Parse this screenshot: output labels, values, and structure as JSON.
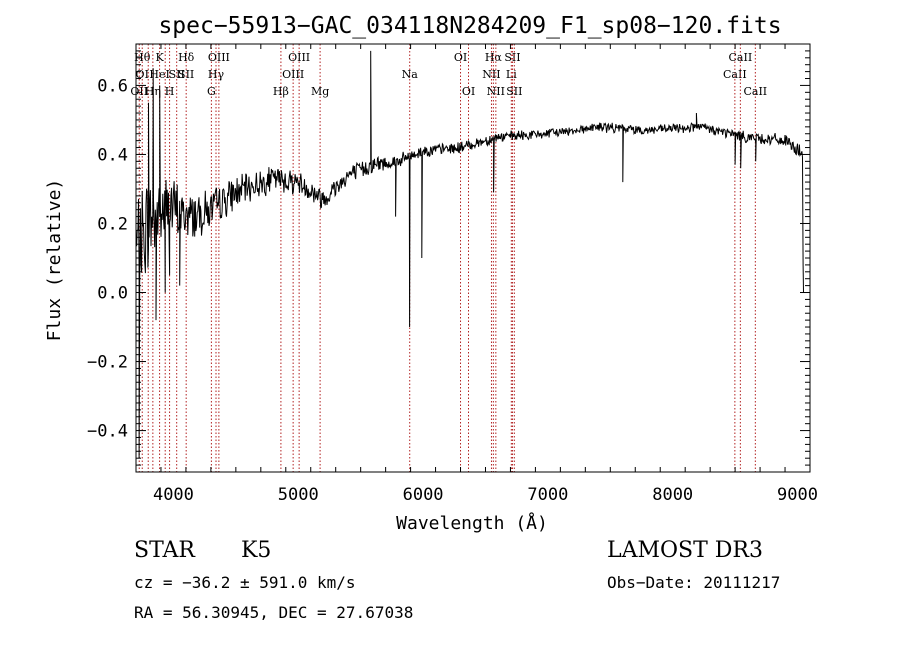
{
  "chart_data": {
    "type": "line",
    "title": "spec−55913−GAC_034118N284209_F1_sp08−120.fits",
    "xlabel": "Wavelength (Å)",
    "ylabel": "Flux (relative)",
    "xlim": [
      3700,
      9100
    ],
    "ylim": [
      -0.52,
      0.72
    ],
    "xticks": [
      4000,
      5000,
      6000,
      7000,
      8000,
      9000
    ],
    "xtick_labels": [
      "4000",
      "5000",
      "6000",
      "7000",
      "8000",
      "9000"
    ],
    "yticks": [
      -0.4,
      -0.2,
      0.0,
      0.2,
      0.4,
      0.6
    ],
    "ytick_labels": [
      "−0.4",
      "−0.2",
      "0.0",
      "0.2",
      "0.4",
      "0.6"
    ],
    "continuum": [
      [
        3700,
        0.12
      ],
      [
        3800,
        0.2
      ],
      [
        3950,
        0.25
      ],
      [
        4100,
        0.22
      ],
      [
        4300,
        0.24
      ],
      [
        4500,
        0.29
      ],
      [
        4800,
        0.33
      ],
      [
        5000,
        0.32
      ],
      [
        5200,
        0.27
      ],
      [
        5400,
        0.34
      ],
      [
        5600,
        0.37
      ],
      [
        5800,
        0.38
      ],
      [
        6000,
        0.41
      ],
      [
        6300,
        0.42
      ],
      [
        6600,
        0.45
      ],
      [
        7000,
        0.46
      ],
      [
        7400,
        0.48
      ],
      [
        7800,
        0.47
      ],
      [
        8200,
        0.48
      ],
      [
        8600,
        0.45
      ],
      [
        8900,
        0.44
      ],
      [
        9050,
        0.4
      ]
    ],
    "noise_profile": [
      [
        3700,
        0.14
      ],
      [
        4000,
        0.08
      ],
      [
        4300,
        0.05
      ],
      [
        4600,
        0.035
      ],
      [
        5000,
        0.03
      ],
      [
        6000,
        0.015
      ],
      [
        7000,
        0.012
      ],
      [
        8000,
        0.012
      ],
      [
        9000,
        0.016
      ]
    ],
    "features": [
      {
        "x": 3725,
        "y": -0.48
      },
      {
        "x": 3800,
        "y": 0.55
      },
      {
        "x": 3838,
        "y": 0.65
      },
      {
        "x": 3860,
        "y": -0.08
      },
      {
        "x": 3890,
        "y": 0.6
      },
      {
        "x": 3934,
        "y": 0.0
      },
      {
        "x": 3969,
        "y": 0.05
      },
      {
        "x": 4050,
        "y": 0.02
      },
      {
        "x": 5580,
        "y": 0.7
      },
      {
        "x": 5780,
        "y": 0.22
      },
      {
        "x": 5892,
        "y": -0.1
      },
      {
        "x": 5990,
        "y": 0.1
      },
      {
        "x": 6565,
        "y": 0.29
      },
      {
        "x": 7600,
        "y": 0.32
      },
      {
        "x": 8190,
        "y": 0.52
      },
      {
        "x": 8500,
        "y": 0.37
      },
      {
        "x": 8545,
        "y": 0.36
      },
      {
        "x": 8665,
        "y": 0.38
      },
      {
        "x": 9045,
        "y": 0.08
      },
      {
        "x": 9048,
        "y": 0.0
      }
    ],
    "line_markers": [
      {
        "wavelength": 3726,
        "labels": [
          {
            "text": "OII",
            "row": 2
          }
        ]
      },
      {
        "wavelength": 3750,
        "labels": [
          {
            "text": "Hθ",
            "row": 0
          },
          {
            "text": "OI",
            "row": 1
          }
        ]
      },
      {
        "wavelength": 3798,
        "labels": []
      },
      {
        "wavelength": 3835,
        "labels": [
          {
            "text": "Hη",
            "row": 2
          }
        ]
      },
      {
        "wavelength": 3889,
        "labels": [
          {
            "text": "K",
            "row": 0
          },
          {
            "text": "HeI",
            "row": 1
          }
        ]
      },
      {
        "wavelength": 3934,
        "labels": []
      },
      {
        "wavelength": 3969,
        "labels": [
          {
            "text": "H",
            "row": 2
          }
        ]
      },
      {
        "wavelength": 4026,
        "labels": [
          {
            "text": "SII",
            "row": 1
          }
        ]
      },
      {
        "wavelength": 4102,
        "labels": [
          {
            "text": "Hδ",
            "row": 0
          },
          {
            "text": "SII",
            "row": 1
          }
        ]
      },
      {
        "wavelength": 4304,
        "labels": [
          {
            "text": "G",
            "row": 2
          }
        ]
      },
      {
        "wavelength": 4341,
        "labels": [
          {
            "text": "Hγ",
            "row": 1
          }
        ]
      },
      {
        "wavelength": 4364,
        "labels": [
          {
            "text": "OIII",
            "row": 0
          }
        ]
      },
      {
        "wavelength": 4861,
        "labels": [
          {
            "text": "Hβ",
            "row": 2
          }
        ]
      },
      {
        "wavelength": 4959,
        "labels": [
          {
            "text": "OIII",
            "row": 1
          }
        ]
      },
      {
        "wavelength": 5007,
        "labels": [
          {
            "text": "OIII",
            "row": 0
          }
        ]
      },
      {
        "wavelength": 5175,
        "labels": [
          {
            "text": "Mg",
            "row": 2
          }
        ]
      },
      {
        "wavelength": 5893,
        "labels": [
          {
            "text": "Na",
            "row": 1
          }
        ]
      },
      {
        "wavelength": 6300,
        "labels": [
          {
            "text": "OI",
            "row": 0
          }
        ]
      },
      {
        "wavelength": 6364,
        "labels": [
          {
            "text": "OI",
            "row": 2
          }
        ]
      },
      {
        "wavelength": 6548,
        "labels": [
          {
            "text": "NII",
            "row": 1
          }
        ]
      },
      {
        "wavelength": 6563,
        "labels": [
          {
            "text": "Hα",
            "row": 0
          }
        ]
      },
      {
        "wavelength": 6583,
        "labels": [
          {
            "text": "NII",
            "row": 2
          }
        ]
      },
      {
        "wavelength": 6707,
        "labels": [
          {
            "text": "Li",
            "row": 1
          }
        ]
      },
      {
        "wavelength": 6716,
        "labels": [
          {
            "text": "SII",
            "row": 0
          }
        ]
      },
      {
        "wavelength": 6731,
        "labels": [
          {
            "text": "SII",
            "row": 2
          }
        ]
      },
      {
        "wavelength": 8498,
        "labels": [
          {
            "text": "CaII",
            "row": 1
          }
        ]
      },
      {
        "wavelength": 8542,
        "labels": [
          {
            "text": "CaII",
            "row": 0
          }
        ]
      },
      {
        "wavelength": 8662,
        "labels": [
          {
            "text": "CaII",
            "row": 2
          }
        ]
      }
    ]
  },
  "info": {
    "class": "STAR",
    "subclass": "K5",
    "survey": "LAMOST DR3",
    "redshift": "cz = −36.2 ± 591.0 km/s",
    "obs_date": "Obs−Date: 20111217",
    "coords": "RA =  56.30945, DEC =  27.67038"
  },
  "colors": {
    "spectrum": "#000000",
    "markers": "#b22222",
    "axes": "#000000"
  }
}
